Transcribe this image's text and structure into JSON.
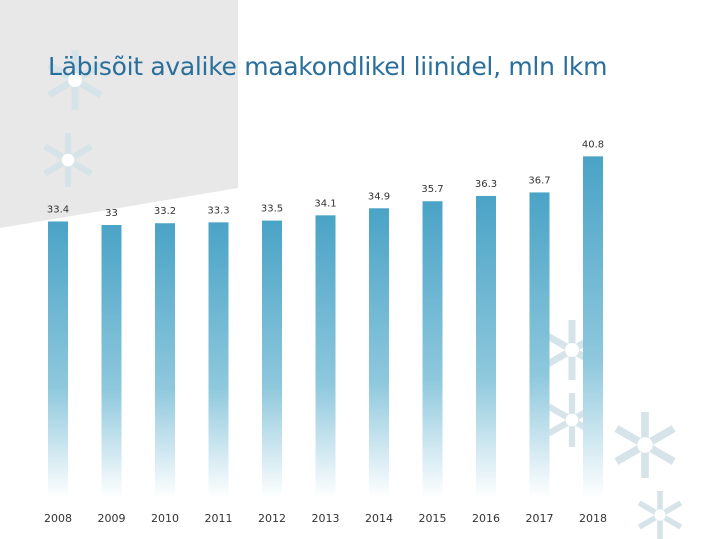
{
  "colors": {
    "title": "#2a6f9c",
    "bar_top": "#4aa3c6",
    "bar_bottom": "#ffffff",
    "background_panel": "#e8e8e8",
    "snowflake": "#d6e4ea"
  },
  "icons": [
    "snowflake-icon"
  ],
  "chart_data": {
    "type": "bar",
    "title": "Läbisõit avalike maakondlikel liinidel, mln lkm",
    "xlabel": "",
    "ylabel": "",
    "categories": [
      "2008",
      "2009",
      "2010",
      "2011",
      "2012",
      "2013",
      "2014",
      "2015",
      "2016",
      "2017",
      "2018"
    ],
    "values": [
      33.4,
      33,
      33.2,
      33.3,
      33.5,
      34.1,
      34.9,
      35.7,
      36.3,
      36.7,
      40.8
    ],
    "value_labels": [
      "33.4",
      "33",
      "33.2",
      "33.3",
      "33.5",
      "34.1",
      "34.9",
      "35.7",
      "36.3",
      "36.7",
      "40.8"
    ],
    "grid": false,
    "legend": "none"
  }
}
